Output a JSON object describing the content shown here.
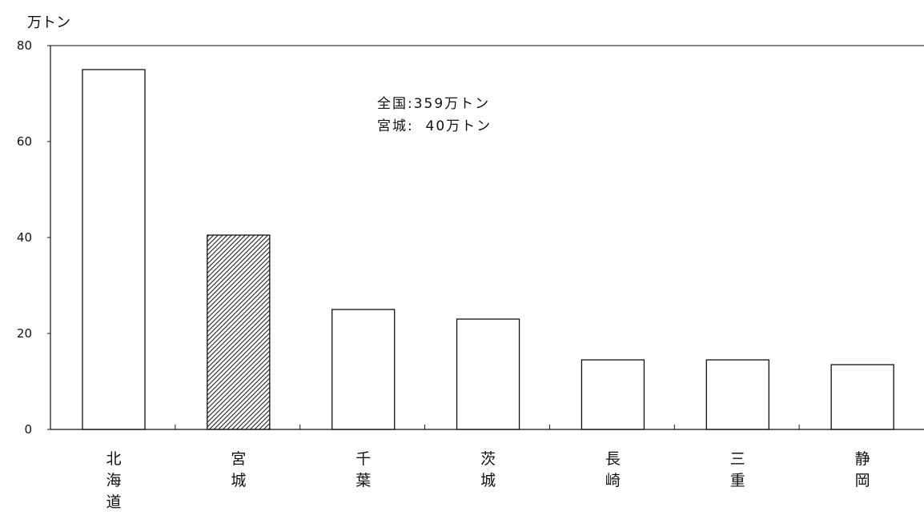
{
  "chart_data": {
    "type": "bar",
    "title": "",
    "xlabel": "",
    "ylabel": "万トン",
    "ylim": [
      0,
      80
    ],
    "yticks": [
      0,
      20,
      40,
      60,
      80
    ],
    "grid": false,
    "categories": [
      "北海道",
      "宮城",
      "千葉",
      "茨城",
      "長崎",
      "三重",
      "静岡"
    ],
    "values": [
      75,
      40.5,
      25,
      23,
      14.5,
      14.5,
      13.5
    ],
    "highlight_index": 1,
    "highlight_style": "hatched",
    "annotations": [
      "全国:359万トン",
      "宮城:  40万トン"
    ]
  },
  "colors": {
    "bar_fill": "#ffffff",
    "bar_stroke": "#111111",
    "highlight_hatch": "#222222",
    "axis": "#111111"
  }
}
